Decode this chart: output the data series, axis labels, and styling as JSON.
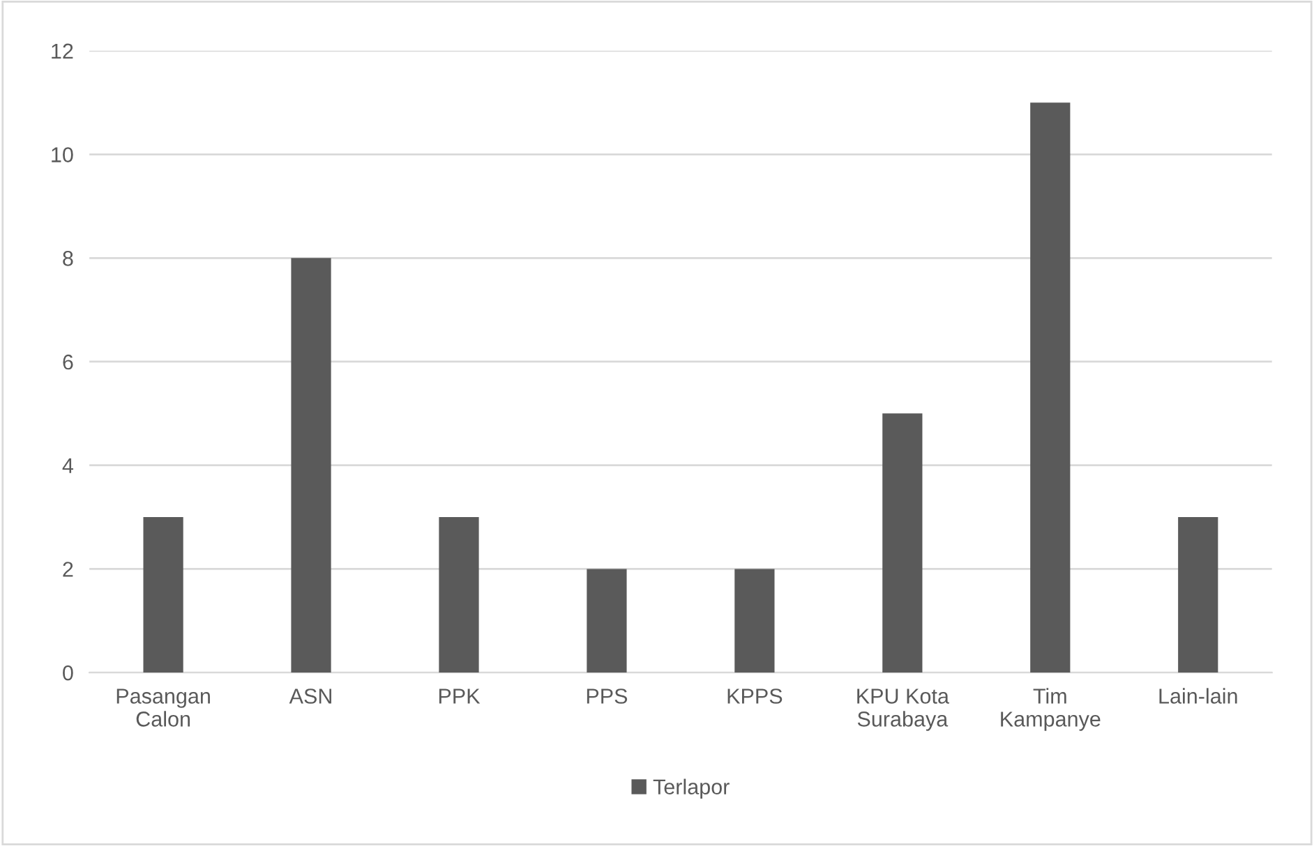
{
  "chart_data": {
    "type": "bar",
    "categories": [
      "Pasangan Calon",
      "ASN",
      "PPK",
      "PPS",
      "KPPS",
      "KPU Kota Surabaya",
      "Tim Kampanye",
      "Lain-lain"
    ],
    "series": [
      {
        "name": "Terlapor",
        "color": "#5a5a5a",
        "values": [
          3,
          8,
          3,
          2,
          2,
          5,
          11,
          3
        ]
      }
    ],
    "ylim": [
      0,
      12
    ],
    "yticks": [
      0,
      2,
      4,
      6,
      8,
      10,
      12
    ],
    "grid": "y",
    "legend": "bottom"
  }
}
